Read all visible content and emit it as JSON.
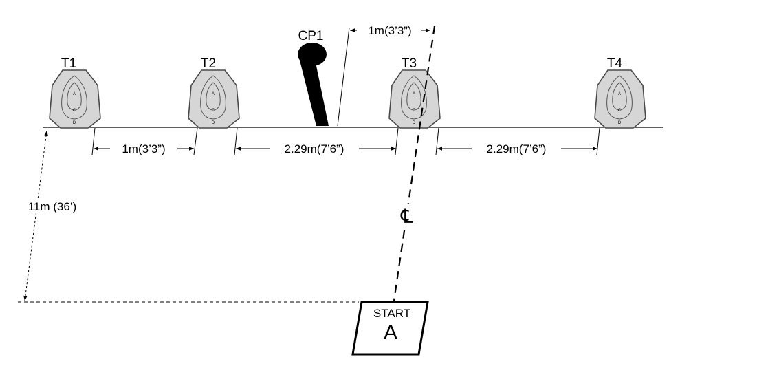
{
  "targets": [
    {
      "label": "T1"
    },
    {
      "label": "T2"
    },
    {
      "label": "T3"
    },
    {
      "label": "T4"
    }
  ],
  "target_zone_letters": [
    "A",
    "C",
    "D"
  ],
  "no_shoot": {
    "label": "CP1"
  },
  "dimensions": {
    "top_gap": "1m(3’3”)",
    "t1_t2": "1m(3’3”)",
    "t2_t3": "2.29m(7’6”)",
    "t3_t4": "2.29m(7’6”)",
    "distance": "11m (36’)"
  },
  "centerline_symbol": "℄",
  "start": {
    "title": "START",
    "letter": "A"
  },
  "colors": {
    "target_fill": "#d6d6d6",
    "target_stroke": "#4a4a4a",
    "ink": "#000000"
  }
}
